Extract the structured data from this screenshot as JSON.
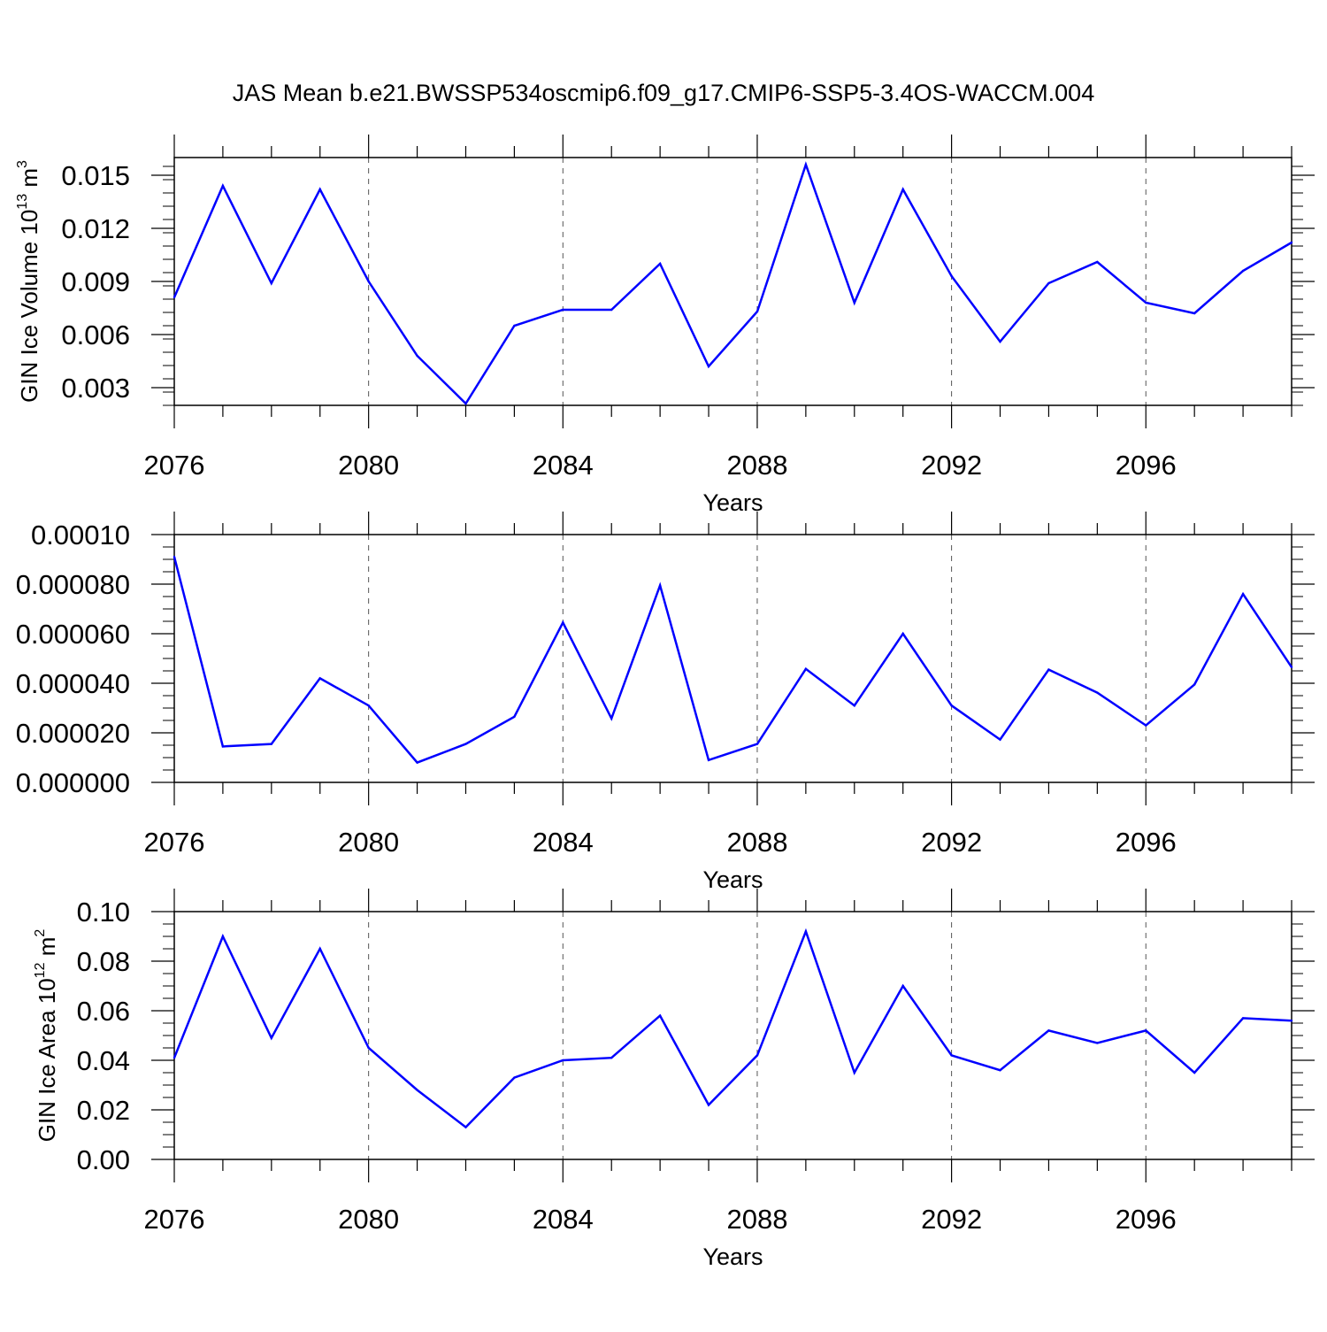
{
  "title": "JAS Mean b.e21.BWSSP534oscmip6.f09_g17.CMIP6-SSP5-3.4OS-WACCM.004",
  "colors": {
    "line": "#0000ff",
    "axis": "#000000",
    "grid": "#555555"
  },
  "chart_data": [
    {
      "type": "line",
      "ylabel_main": "GIN Ice Volume 10",
      "ylabel_sup": "13",
      "ylabel_unit": " m",
      "ylabel_unit_sup": "3",
      "xlabel": "Years",
      "xlim": [
        2076,
        2099
      ],
      "ylim": [
        0.002,
        0.016
      ],
      "yticks": [
        0.003,
        0.006,
        0.009,
        0.012,
        0.015
      ],
      "ytick_labels": [
        "0.003",
        "0.006",
        "0.009",
        "0.012",
        "0.015"
      ],
      "yminor_step": 0.00075,
      "xticks": [
        2076,
        2080,
        2084,
        2088,
        2092,
        2096
      ],
      "xtick_labels": [
        "2076",
        "2080",
        "2084",
        "2088",
        "2092",
        "2096"
      ],
      "x": [
        2076,
        2077,
        2078,
        2079,
        2080,
        2081,
        2082,
        2083,
        2084,
        2085,
        2086,
        2087,
        2088,
        2089,
        2090,
        2091,
        2092,
        2093,
        2094,
        2095,
        2096,
        2097,
        2098,
        2099
      ],
      "values": [
        0.0081,
        0.0144,
        0.0089,
        0.0142,
        0.009,
        0.0048,
        0.0021,
        0.0065,
        0.0074,
        0.0074,
        0.01,
        0.0042,
        0.0073,
        0.0156,
        0.0078,
        0.0142,
        0.0093,
        0.0056,
        0.0089,
        0.0101,
        0.0078,
        0.0072,
        0.0096,
        0.0112
      ]
    },
    {
      "type": "line",
      "ylabel_main": "",
      "ylabel_sup": "",
      "ylabel_unit": "",
      "ylabel_unit_sup": "",
      "xlabel": "Years",
      "xlim": [
        2076,
        2099
      ],
      "ylim": [
        0,
        0.0001
      ],
      "yticks": [
        0,
        2e-05,
        4e-05,
        6e-05,
        8e-05,
        0.0001
      ],
      "ytick_labels": [
        "0.000000",
        "0.000020",
        "0.000040",
        "0.000060",
        "0.000080",
        "0.00010"
      ],
      "yminor_step": 5e-06,
      "xticks": [
        2076,
        2080,
        2084,
        2088,
        2092,
        2096
      ],
      "xtick_labels": [
        "2076",
        "2080",
        "2084",
        "2088",
        "2092",
        "2096"
      ],
      "x": [
        2076,
        2077,
        2078,
        2079,
        2080,
        2081,
        2082,
        2083,
        2084,
        2085,
        2086,
        2087,
        2088,
        2089,
        2090,
        2091,
        2092,
        2093,
        2094,
        2095,
        2096,
        2097,
        2098,
        2099
      ],
      "values": [
        9.1e-05,
        1.45e-05,
        1.55e-05,
        4.2e-05,
        3.1e-05,
        8e-06,
        1.55e-05,
        2.65e-05,
        6.45e-05,
        2.58e-05,
        7.95e-05,
        9e-06,
        1.55e-05,
        4.58e-05,
        3.1e-05,
        6e-05,
        3.1e-05,
        1.73e-05,
        4.55e-05,
        3.62e-05,
        2.3e-05,
        3.95e-05,
        7.6e-05,
        4.65e-05
      ]
    },
    {
      "type": "line",
      "ylabel_main": "GIN Ice Area 10",
      "ylabel_sup": "12",
      "ylabel_unit": " m",
      "ylabel_unit_sup": "2",
      "xlabel": "Years",
      "xlim": [
        2076,
        2099
      ],
      "ylim": [
        0,
        0.1
      ],
      "yticks": [
        0,
        0.02,
        0.04,
        0.06,
        0.08,
        0.1
      ],
      "ytick_labels": [
        "0.00",
        "0.02",
        "0.04",
        "0.06",
        "0.08",
        "0.10"
      ],
      "yminor_step": 0.005,
      "xticks": [
        2076,
        2080,
        2084,
        2088,
        2092,
        2096
      ],
      "xtick_labels": [
        "2076",
        "2080",
        "2084",
        "2088",
        "2092",
        "2096"
      ],
      "x": [
        2076,
        2077,
        2078,
        2079,
        2080,
        2081,
        2082,
        2083,
        2084,
        2085,
        2086,
        2087,
        2088,
        2089,
        2090,
        2091,
        2092,
        2093,
        2094,
        2095,
        2096,
        2097,
        2098,
        2099
      ],
      "values": [
        0.041,
        0.09,
        0.049,
        0.085,
        0.045,
        0.028,
        0.013,
        0.033,
        0.04,
        0.041,
        0.058,
        0.022,
        0.042,
        0.092,
        0.035,
        0.07,
        0.042,
        0.036,
        0.052,
        0.047,
        0.052,
        0.035,
        0.057,
        0.056
      ]
    }
  ]
}
